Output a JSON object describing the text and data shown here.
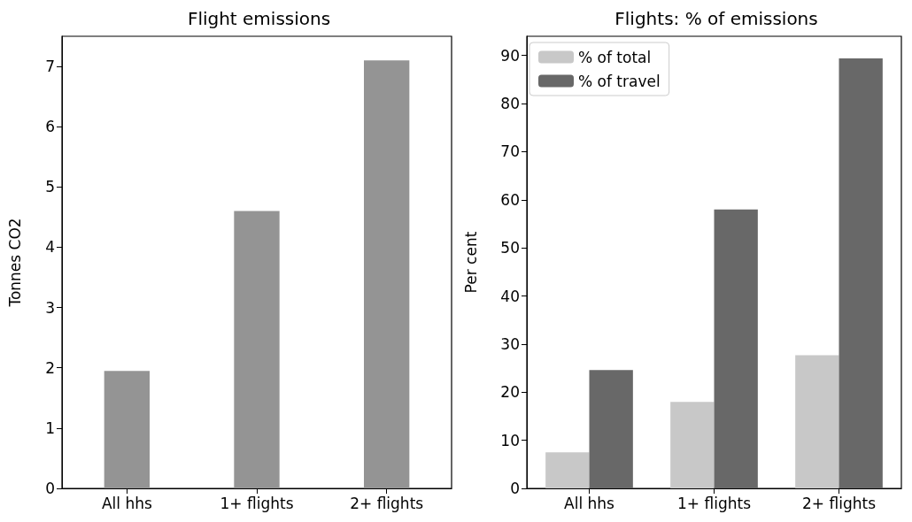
{
  "chart_data": [
    {
      "type": "bar",
      "title": "Flight emissions",
      "ylabel": "Tonnes CO2",
      "categories": [
        "All hhs",
        "1+ flights",
        "2+ flights"
      ],
      "values": [
        1.95,
        4.6,
        7.1
      ],
      "color": "#949494",
      "ylim": [
        0,
        7.5
      ],
      "yticks": [
        0,
        1,
        2,
        3,
        4,
        5,
        6,
        7
      ],
      "grid": false,
      "legend": false
    },
    {
      "type": "bar",
      "title": "Flights: % of emissions",
      "ylabel": "Per cent",
      "categories": [
        "All hhs",
        "1+ flights",
        "2+ flights"
      ],
      "series": [
        {
          "name": "% of total",
          "color": "#c8c8c8",
          "values": [
            7.5,
            18,
            27.7
          ]
        },
        {
          "name": "% of travel",
          "color": "#686868",
          "values": [
            24.6,
            58,
            89.4
          ]
        }
      ],
      "ylim": [
        0,
        94
      ],
      "yticks": [
        0,
        10,
        20,
        30,
        40,
        50,
        60,
        70,
        80,
        90
      ],
      "grid": false,
      "legend": "top left"
    }
  ]
}
